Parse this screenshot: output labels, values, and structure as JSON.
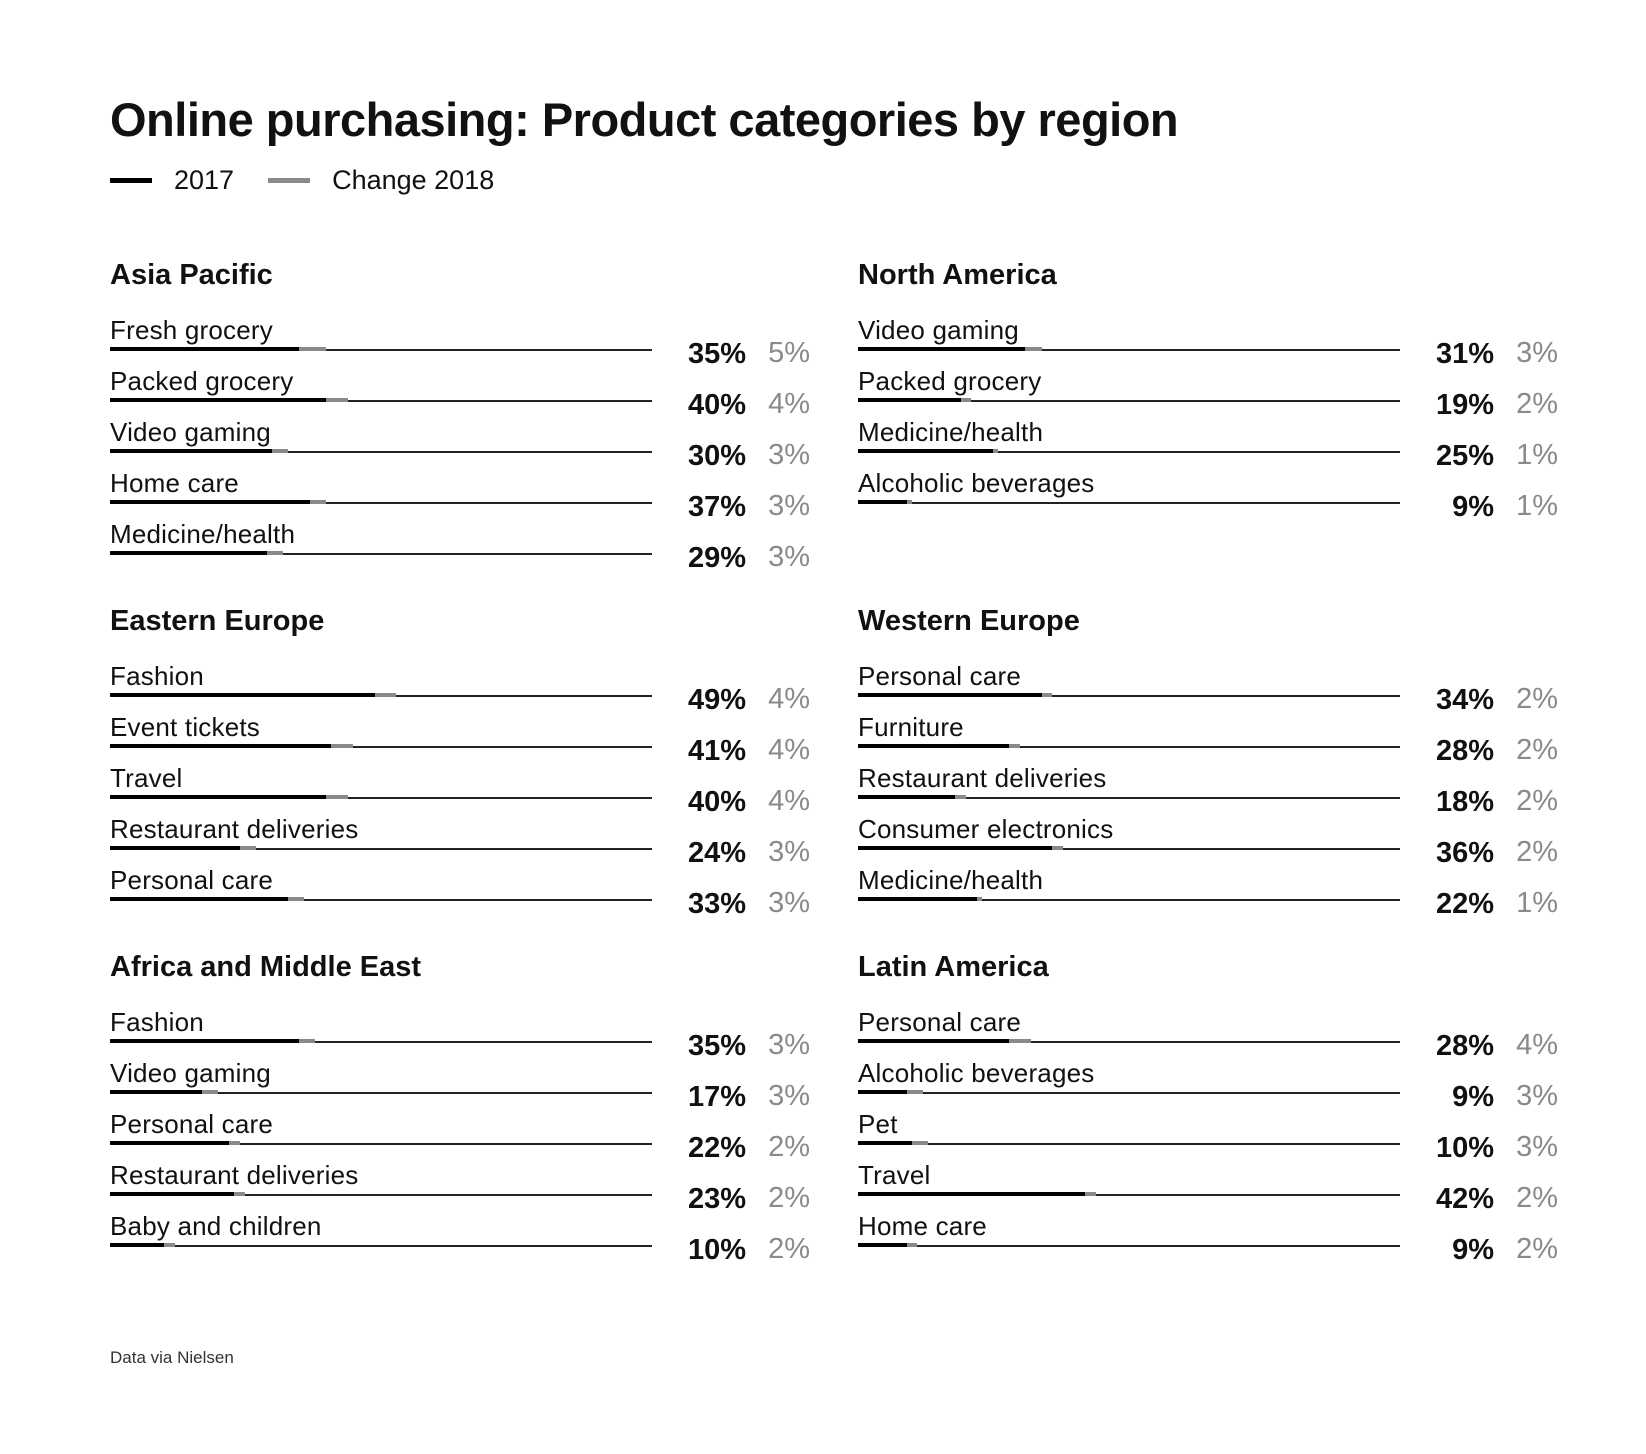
{
  "chart_data": {
    "type": "bar",
    "title": "Online purchasing: Product categories by region",
    "legend": [
      {
        "name": "2017",
        "color": "#000000"
      },
      {
        "name": "Change 2018",
        "color": "#8a8a8a"
      }
    ],
    "source": "Data via Nielsen",
    "panels": [
      {
        "region": "Asia Pacific",
        "rows": [
          {
            "category": "Fresh grocery",
            "value_2017": 35,
            "change_2018": 5,
            "label_2017": "35%",
            "label_change": "5%"
          },
          {
            "category": "Packed grocery",
            "value_2017": 40,
            "change_2018": 4,
            "label_2017": "40%",
            "label_change": "4%"
          },
          {
            "category": "Video gaming",
            "value_2017": 30,
            "change_2018": 3,
            "label_2017": "30%",
            "label_change": "3%"
          },
          {
            "category": "Home care",
            "value_2017": 37,
            "change_2018": 3,
            "label_2017": "37%",
            "label_change": "3%"
          },
          {
            "category": "Medicine/health",
            "value_2017": 29,
            "change_2018": 3,
            "label_2017": "29%",
            "label_change": "3%"
          }
        ]
      },
      {
        "region": "North America",
        "rows": [
          {
            "category": "Video gaming",
            "value_2017": 31,
            "change_2018": 3,
            "label_2017": "31%",
            "label_change": "3%"
          },
          {
            "category": "Packed grocery",
            "value_2017": 19,
            "change_2018": 2,
            "label_2017": "19%",
            "label_change": "2%"
          },
          {
            "category": "Medicine/health",
            "value_2017": 25,
            "change_2018": 1,
            "label_2017": "25%",
            "label_change": "1%"
          },
          {
            "category": "Alcoholic beverages",
            "value_2017": 9,
            "change_2018": 1,
            "label_2017": "9%",
            "label_change": "1%"
          }
        ]
      },
      {
        "region": "Eastern Europe",
        "rows": [
          {
            "category": "Fashion",
            "value_2017": 49,
            "change_2018": 4,
            "label_2017": "49%",
            "label_change": "4%"
          },
          {
            "category": "Event tickets",
            "value_2017": 41,
            "change_2018": 4,
            "label_2017": "41%",
            "label_change": "4%"
          },
          {
            "category": "Travel",
            "value_2017": 40,
            "change_2018": 4,
            "label_2017": "40%",
            "label_change": "4%"
          },
          {
            "category": "Restaurant deliveries",
            "value_2017": 24,
            "change_2018": 3,
            "label_2017": "24%",
            "label_change": "3%"
          },
          {
            "category": "Personal care",
            "value_2017": 33,
            "change_2018": 3,
            "label_2017": "33%",
            "label_change": "3%"
          }
        ]
      },
      {
        "region": "Western Europe",
        "rows": [
          {
            "category": "Personal care",
            "value_2017": 34,
            "change_2018": 2,
            "label_2017": "34%",
            "label_change": "2%"
          },
          {
            "category": "Furniture",
            "value_2017": 28,
            "change_2018": 2,
            "label_2017": "28%",
            "label_change": "2%"
          },
          {
            "category": "Restaurant deliveries",
            "value_2017": 18,
            "change_2018": 2,
            "label_2017": "18%",
            "label_change": "2%"
          },
          {
            "category": "Consumer electronics",
            "value_2017": 36,
            "change_2018": 2,
            "label_2017": "36%",
            "label_change": "2%"
          },
          {
            "category": "Medicine/health",
            "value_2017": 22,
            "change_2018": 1,
            "label_2017": "22%",
            "label_change": "1%"
          }
        ]
      },
      {
        "region": "Africa and Middle East",
        "rows": [
          {
            "category": "Fashion",
            "value_2017": 35,
            "change_2018": 3,
            "label_2017": "35%",
            "label_change": "3%"
          },
          {
            "category": "Video gaming",
            "value_2017": 17,
            "change_2018": 3,
            "label_2017": "17%",
            "label_change": "3%"
          },
          {
            "category": "Personal care",
            "value_2017": 22,
            "change_2018": 2,
            "label_2017": "22%",
            "label_change": "2%"
          },
          {
            "category": "Restaurant deliveries",
            "value_2017": 23,
            "change_2018": 2,
            "label_2017": "23%",
            "label_change": "2%"
          },
          {
            "category": "Baby and children",
            "value_2017": 10,
            "change_2018": 2,
            "label_2017": "10%",
            "label_change": "2%"
          }
        ]
      },
      {
        "region": "Latin America",
        "rows": [
          {
            "category": "Personal care",
            "value_2017": 28,
            "change_2018": 4,
            "label_2017": "28%",
            "label_change": "4%"
          },
          {
            "category": "Alcoholic beverages",
            "value_2017": 9,
            "change_2018": 3,
            "label_2017": "9%",
            "label_change": "3%"
          },
          {
            "category": "Pet",
            "value_2017": 10,
            "change_2018": 3,
            "label_2017": "10%",
            "label_change": "3%"
          },
          {
            "category": "Travel",
            "value_2017": 42,
            "change_2018": 2,
            "label_2017": "42%",
            "label_change": "2%"
          },
          {
            "category": "Home care",
            "value_2017": 9,
            "change_2018": 2,
            "label_2017": "9%",
            "label_change": "2%"
          }
        ]
      }
    ]
  }
}
